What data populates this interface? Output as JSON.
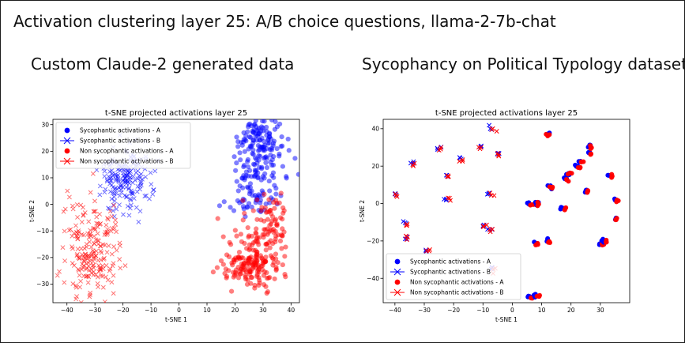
{
  "page": {
    "title": "Activation clustering layer 25: A/B choice questions, llama-2-7b-chat",
    "subtitle_left": "Custom Claude-2 generated data",
    "subtitle_right": "Sycophancy on Political Typology dataset"
  },
  "colors": {
    "blue": "#0000ff",
    "red": "#ff0000",
    "border": "#1b1b1b"
  },
  "chart_data": [
    {
      "type": "scatter",
      "title": "t-SNE projected activations layer 25",
      "xlabel": "t-SNE 1",
      "ylabel": "t-SNE 2",
      "xlim": [
        -45,
        43
      ],
      "ylim": [
        -37,
        32
      ],
      "xticks": [
        -40,
        -30,
        -20,
        -10,
        0,
        10,
        20,
        30,
        40
      ],
      "yticks": [
        -30,
        -20,
        -10,
        0,
        10,
        20,
        30
      ],
      "legend_position": "top-left",
      "series": [
        {
          "name": "Sycophantic activations - A",
          "marker": "circle",
          "color": "#0000ff",
          "clusters": [
            {
              "cx": 28.5,
              "cy": 23,
              "sx": 4.5,
              "sy": 6,
              "n": 150
            },
            {
              "cx": 28,
              "cy": 8,
              "sx": 4.5,
              "sy": 5,
              "n": 60
            },
            {
              "cx": 26.5,
              "cy": -1,
              "sx": 4,
              "sy": 2.5,
              "n": 25
            }
          ]
        },
        {
          "name": "Sycophantic activations - B",
          "marker": "x",
          "color": "#0000ff",
          "clusters": [
            {
              "cx": -19,
              "cy": 10,
              "sx": 4.5,
              "sy": 6,
              "n": 190
            }
          ]
        },
        {
          "name": "Non sycophantic activations - A",
          "marker": "circle",
          "color": "#ff0000",
          "clusters": [
            {
              "cx": 25.5,
              "cy": -23,
              "sx": 5,
              "sy": 5,
              "n": 170
            },
            {
              "cx": 32,
              "cy": -5,
              "sx": 3.5,
              "sy": 4.5,
              "n": 55
            },
            {
              "cx": 29,
              "cy": -13,
              "sx": 4,
              "sy": 3,
              "n": 30
            }
          ]
        },
        {
          "name": "Non sycophantic activations - B",
          "marker": "x",
          "color": "#ff0000",
          "clusters": [
            {
              "cx": -31,
              "cy": -17,
              "sx": 5,
              "sy": 9,
              "n": 210
            }
          ]
        }
      ]
    },
    {
      "type": "scatter",
      "title": "t-SNE projected activations layer 25",
      "xlabel": "t-SNE 1",
      "ylabel": "t-SNE 2",
      "xlim": [
        -44,
        40
      ],
      "ylim": [
        -53,
        45
      ],
      "xticks": [
        -40,
        -30,
        -20,
        -10,
        0,
        10,
        20,
        30
      ],
      "yticks": [
        -40,
        -20,
        0,
        20,
        40
      ],
      "legend_position": "bottom-left",
      "series_names": [
        "Sycophantic activations - A",
        "Sycophantic activations - B",
        "Non sycophantic activations - A",
        "Non sycophantic activations - B"
      ],
      "clusters_B": [
        [
          -40,
          5
        ],
        [
          -36.5,
          -10.5
        ],
        [
          -36,
          -18
        ],
        [
          -34,
          22
        ],
        [
          -29,
          -24.5
        ],
        [
          -25,
          29
        ],
        [
          -22.5,
          15
        ],
        [
          -22,
          2
        ],
        [
          -18,
          24
        ],
        [
          -11,
          29.5
        ],
        [
          -10,
          -11.5
        ],
        [
          -8,
          -13.5
        ],
        [
          -8,
          5.5
        ],
        [
          -7,
          40
        ],
        [
          -5,
          26.5
        ],
        [
          -7,
          -35
        ]
      ],
      "clusters_A": [
        [
          6,
          0
        ],
        [
          6,
          -50
        ],
        [
          8,
          -21
        ],
        [
          8,
          -49
        ],
        [
          8,
          0
        ],
        [
          12,
          -20
        ],
        [
          12,
          37
        ],
        [
          13,
          9
        ],
        [
          17,
          -2
        ],
        [
          18,
          13
        ],
        [
          19,
          16
        ],
        [
          22,
          20
        ],
        [
          23,
          22
        ],
        [
          25,
          7
        ],
        [
          26,
          27
        ],
        [
          26,
          31
        ],
        [
          30,
          -21
        ],
        [
          31,
          -20
        ],
        [
          33,
          15
        ],
        [
          35,
          2
        ],
        [
          35,
          -8
        ]
      ]
    }
  ]
}
